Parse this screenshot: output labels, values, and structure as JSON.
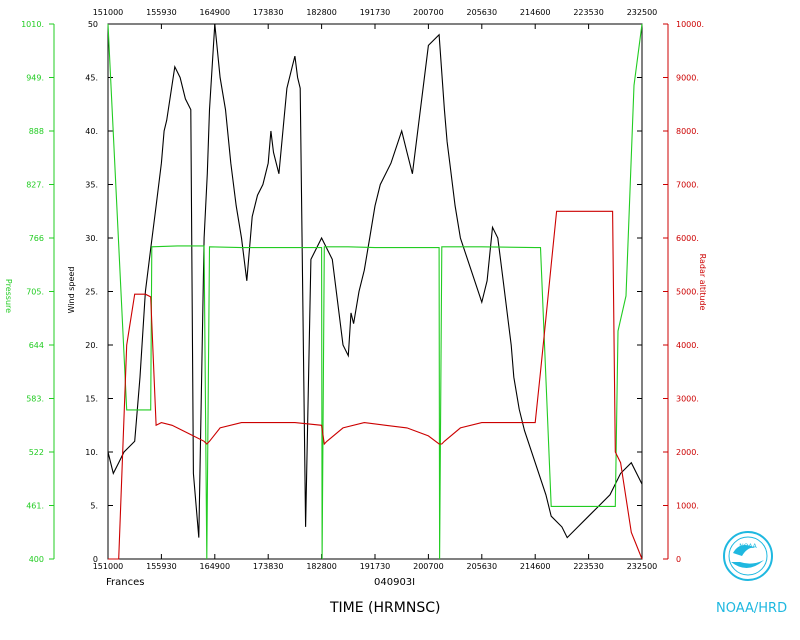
{
  "chart_data": {
    "type": "line",
    "title": "",
    "storm_name": "Frances",
    "date_code": "040903I",
    "xlabel": "TIME (HRMNSC)",
    "x_ticks": [
      "151000",
      "155930",
      "164900",
      "173830",
      "182800",
      "191730",
      "200700",
      "205630",
      "214600",
      "223530",
      "232500"
    ],
    "axes": {
      "wind": {
        "label": "Wind speed",
        "ylim": [
          0,
          50
        ],
        "ticks": [
          "0",
          "5.",
          "10.",
          "15.",
          "20.",
          "25.",
          "30.",
          "35.",
          "40.",
          "45.",
          "50"
        ],
        "color": "#000000"
      },
      "pressure": {
        "label": "Pressure",
        "ylim": [
          400,
          1010
        ],
        "ticks": [
          "400",
          "461.",
          "522",
          "583.",
          "644",
          "705.",
          "766",
          "827.",
          "888",
          "949.",
          "1010."
        ],
        "color": "#22cc22"
      },
      "altitude": {
        "label": "Radar altitude",
        "ylim": [
          0,
          10000
        ],
        "ticks": [
          "0",
          "1000.",
          "2000.",
          "3000.",
          "4000.",
          "5000.",
          "6000.",
          "7000.",
          "8000.",
          "9000.",
          "10000."
        ],
        "color": "#cc0000"
      }
    },
    "series": [
      {
        "axis": "wind",
        "color": "#000000",
        "x": [
          0,
          0.1,
          0.2,
          0.3,
          0.5,
          0.6,
          0.7,
          0.8,
          0.9,
          1.0,
          1.05,
          1.1,
          1.25,
          1.35,
          1.45,
          1.55,
          1.6,
          1.7,
          1.8,
          1.83,
          1.86,
          1.9,
          2.0,
          2.1,
          2.2,
          2.3,
          2.4,
          2.5,
          2.6,
          2.7,
          2.8,
          2.9,
          3.0,
          3.05,
          3.1,
          3.2,
          3.35,
          3.45,
          3.5,
          3.55,
          3.6,
          3.7,
          3.8,
          4.0,
          4.2,
          4.4,
          4.5,
          4.55,
          4.6,
          4.7,
          4.8,
          4.9,
          5.0,
          5.1,
          5.3,
          5.5,
          5.6,
          5.7,
          6.0,
          6.2,
          6.3,
          6.35,
          6.4,
          6.5,
          6.6,
          6.8,
          7.0,
          7.1,
          7.2,
          7.3,
          7.4,
          7.5,
          7.55,
          7.6,
          7.7,
          7.8,
          8.0,
          8.2,
          8.3,
          8.5,
          8.6,
          8.8,
          9.0,
          9.2,
          9.4,
          9.6,
          9.8,
          10.0
        ],
        "y": [
          10,
          8,
          9,
          10,
          11,
          17,
          25,
          29,
          33,
          37,
          40,
          41,
          46,
          45,
          43,
          42,
          8,
          2,
          30,
          33,
          36,
          42,
          50,
          45,
          42,
          37,
          33,
          30,
          26,
          32,
          34,
          35,
          37,
          40,
          38,
          36,
          44,
          46,
          47,
          45,
          44,
          3,
          28,
          30,
          28,
          20,
          19,
          23,
          22,
          25,
          27,
          30,
          33,
          35,
          37,
          40,
          38,
          36,
          48,
          49,
          42,
          39,
          37,
          33,
          30,
          27,
          24,
          26,
          31,
          30,
          26,
          22,
          20,
          17,
          14,
          12,
          9,
          6,
          4,
          3,
          2,
          3,
          4,
          5,
          6,
          8,
          9,
          7
        ],
        "note": "black wind speed trace"
      },
      {
        "axis": "pressure",
        "color": "#22cc22",
        "x": [
          0,
          0.35,
          0.7,
          0.8,
          0.82,
          1.3,
          1.8,
          1.85,
          1.9,
          2.5,
          3.0,
          3.5,
          4.0,
          4.01,
          4.05,
          4.5,
          5.0,
          5.5,
          6.0,
          6.2,
          6.21,
          6.25,
          7.0,
          8.0,
          8.1,
          8.3,
          8.4,
          8.6,
          9.0,
          9.3,
          9.5,
          9.55,
          9.7,
          9.85,
          10.0
        ],
        "y": [
          1010,
          570,
          570,
          570,
          756,
          757,
          757,
          400,
          756,
          755,
          755,
          755,
          755,
          400,
          756,
          756,
          755,
          755,
          755,
          755,
          400,
          756,
          756,
          755,
          755,
          460,
          460,
          460,
          460,
          460,
          460,
          660,
          700,
          940,
          1010
        ],
        "note": "green pressure trace"
      },
      {
        "axis": "altitude",
        "color": "#cc0000",
        "x": [
          0,
          0.2,
          0.35,
          0.5,
          0.7,
          0.8,
          0.9,
          1.0,
          1.2,
          1.5,
          1.8,
          1.85,
          1.9,
          2.1,
          2.5,
          3.0,
          3.5,
          4.0,
          4.05,
          4.1,
          4.4,
          4.8,
          5.2,
          5.6,
          6.0,
          6.2,
          6.25,
          6.3,
          6.6,
          7.0,
          7.5,
          8.0,
          8.1,
          8.2,
          8.3,
          8.4,
          8.5,
          8.6,
          9.0,
          9.3,
          9.45,
          9.5,
          9.6,
          9.8,
          10.0
        ],
        "y": [
          0,
          0,
          4000,
          4950,
          4950,
          4900,
          2500,
          2550,
          2500,
          2350,
          2200,
          2150,
          2200,
          2450,
          2550,
          2550,
          2550,
          2500,
          2150,
          2200,
          2450,
          2550,
          2500,
          2450,
          2300,
          2150,
          2150,
          2200,
          2450,
          2550,
          2550,
          2550,
          3500,
          4500,
          5500,
          6500,
          6500,
          6500,
          6500,
          6500,
          6500,
          2000,
          1800,
          500,
          0
        ],
        "note": "red radar altitude trace"
      }
    ]
  },
  "logo": {
    "text": "NOAA/HRD",
    "emblem_text": "NOAA"
  }
}
